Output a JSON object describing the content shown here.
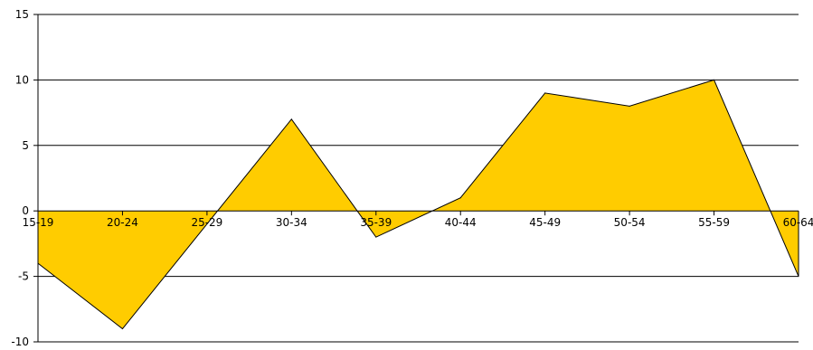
{
  "chart_data": {
    "type": "area",
    "title": "",
    "xlabel": "",
    "ylabel": "",
    "categories": [
      "15-19",
      "20-24",
      "25-29",
      "30-34",
      "35-39",
      "40-44",
      "45-49",
      "50-54",
      "55-59",
      "60-64"
    ],
    "series": [
      {
        "values": [
          -4,
          -9,
          -1,
          7,
          -2,
          1,
          9,
          8,
          10,
          -5
        ]
      }
    ],
    "ylim": [
      -10,
      15
    ],
    "yticks": [
      -10,
      -5,
      0,
      5,
      10,
      15
    ],
    "grid": true,
    "legend": "none",
    "colors": {
      "fill": "#FFCC00",
      "line": "#000000",
      "grid": "#000000"
    }
  }
}
